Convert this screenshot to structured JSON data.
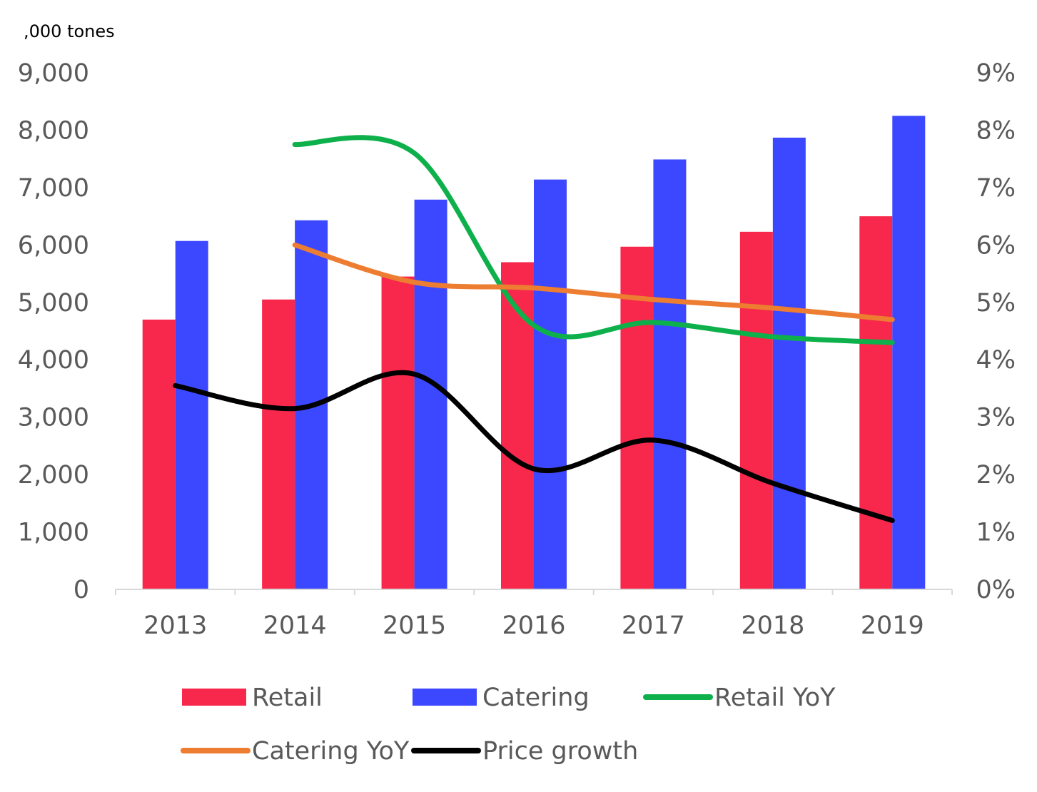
{
  "chart_data": {
    "type": "bar",
    "categories": [
      "2013",
      "2014",
      "2015",
      "2016",
      "2017",
      "2018",
      "2019"
    ],
    "y_unit_label": ",000 tones",
    "ylim": [
      0,
      9000
    ],
    "y2lim": [
      0,
      9
    ],
    "y_ticks": [
      "0",
      "1,000",
      "2,000",
      "3,000",
      "4,000",
      "5,000",
      "6,000",
      "7,000",
      "8,000",
      "9,000"
    ],
    "y2_ticks": [
      "0%",
      "1%",
      "2%",
      "3%",
      "4%",
      "5%",
      "6%",
      "7%",
      "8%",
      "9%"
    ],
    "grid": false,
    "legend_position": "bottom",
    "bar_series": [
      {
        "name": "Retail",
        "axis": "left",
        "color": "#f7284b",
        "values": [
          4700,
          5050,
          5450,
          5700,
          5970,
          6230,
          6500
        ]
      },
      {
        "name": "Catering",
        "axis": "left",
        "color": "#3b48ff",
        "values": [
          6070,
          6430,
          6790,
          7140,
          7490,
          7870,
          8250
        ]
      }
    ],
    "line_series": [
      {
        "name": "Retail YoY",
        "axis": "right",
        "unit": "%",
        "color": "#0db04b",
        "values": [
          null,
          7.75,
          7.6,
          4.6,
          4.65,
          4.4,
          4.3
        ]
      },
      {
        "name": "Catering YoY",
        "axis": "right",
        "unit": "%",
        "color": "#ed7d31",
        "values": [
          null,
          6.0,
          5.35,
          5.25,
          5.05,
          4.9,
          4.7
        ]
      },
      {
        "name": "Price growth",
        "axis": "right",
        "unit": "%",
        "color": "#000000",
        "values": [
          3.55,
          3.15,
          3.75,
          2.1,
          2.6,
          1.85,
          1.2
        ]
      }
    ]
  }
}
